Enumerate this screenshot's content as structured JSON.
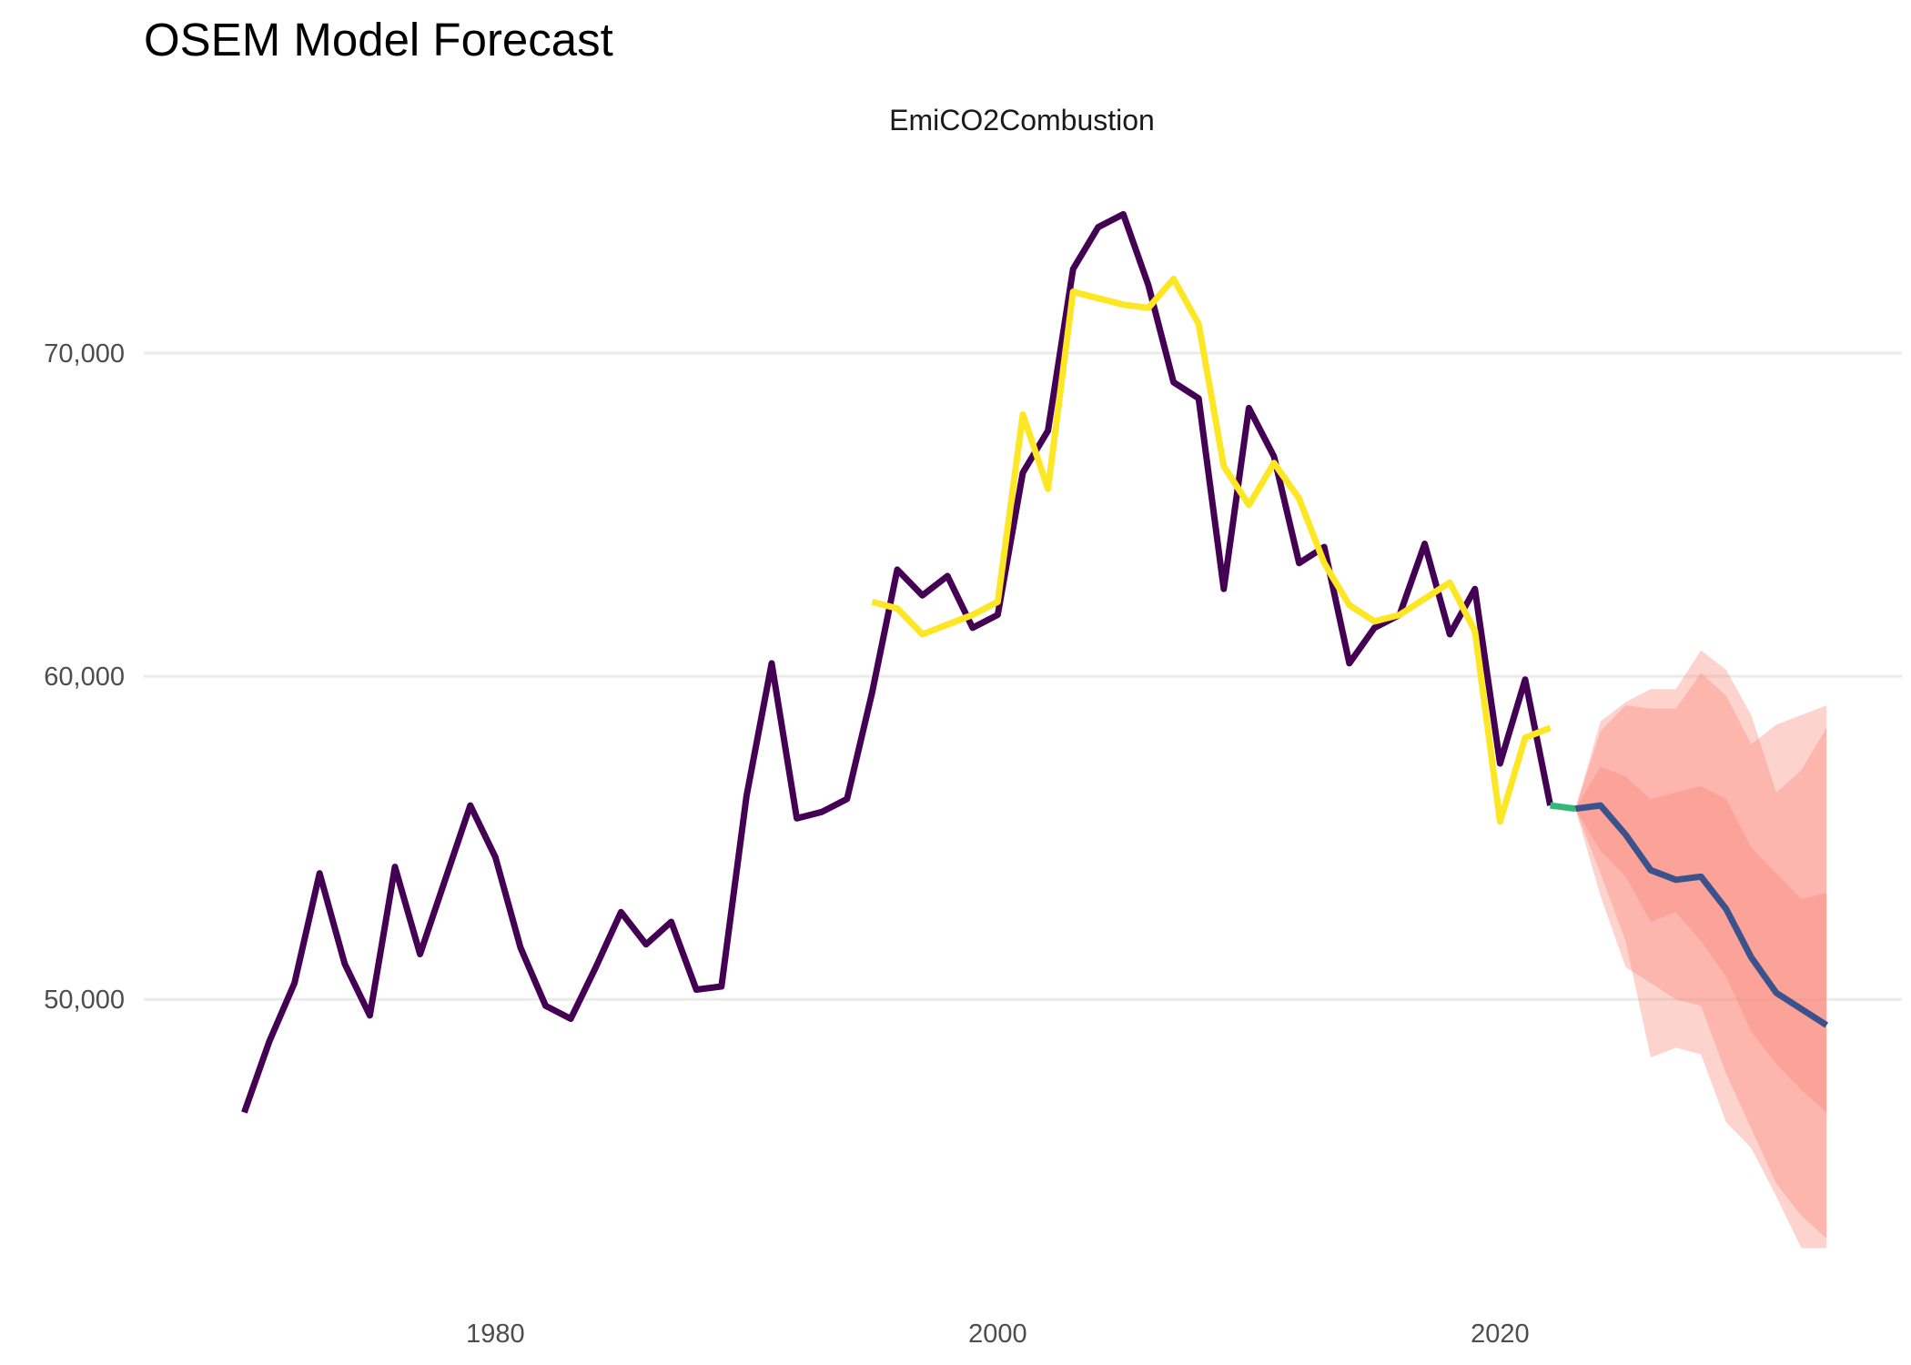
{
  "title": "OSEM Model Forecast",
  "chart_data": {
    "type": "line",
    "title": "OSEM Model Forecast",
    "subtitle": "EmiCO2Combustion",
    "xlabel": "",
    "ylabel": "",
    "xlim": [
      1966,
      2036
    ],
    "ylim": [
      41500,
      76000
    ],
    "x_ticks": [
      1980,
      2000,
      2020
    ],
    "x_tick_labels": [
      "1980",
      "2000",
      "2020"
    ],
    "y_ticks": [
      50000,
      60000,
      70000
    ],
    "y_tick_labels": [
      "50,000",
      "60,000",
      "70,000"
    ],
    "grid": "horizontal major",
    "legend": "none",
    "series": [
      {
        "color": "#440154",
        "x": [
          1970,
          1971,
          1972,
          1973,
          1974,
          1975,
          1976,
          1977,
          1978,
          1979,
          1980,
          1981,
          1982,
          1983,
          1984,
          1985,
          1986,
          1987,
          1988,
          1989,
          1990,
          1991,
          1992,
          1993,
          1994,
          1995,
          1996,
          1997,
          1998,
          1999,
          2000,
          2001,
          2002,
          2003,
          2004,
          2005,
          2006,
          2007,
          2008,
          2009,
          2010,
          2011,
          2012,
          2013,
          2014,
          2015,
          2016,
          2017,
          2018,
          2019,
          2020,
          2021,
          2022
        ],
        "y": [
          46500,
          48700,
          50500,
          53900,
          51100,
          49500,
          54100,
          51400,
          53700,
          56000,
          54400,
          51600,
          49800,
          49400,
          51000,
          52700,
          51700,
          52400,
          50300,
          50400,
          56300,
          60400,
          55600,
          55800,
          56200,
          59500,
          63300,
          62500,
          63100,
          61500,
          61900,
          66300,
          67600,
          72600,
          73900,
          74300,
          72100,
          69100,
          68600,
          62700,
          68300,
          66800,
          63500,
          64000,
          60400,
          61500,
          61900,
          64100,
          61300,
          62700,
          57300,
          59900,
          56000
        ]
      },
      {
        "color": "#FDE725",
        "x": [
          1995,
          1996,
          1997,
          1998,
          1999,
          2000,
          2001,
          2002,
          2003,
          2004,
          2005,
          2006,
          2007,
          2008,
          2009,
          2010,
          2011,
          2012,
          2013,
          2014,
          2015,
          2016,
          2017,
          2018,
          2019,
          2020,
          2021,
          2022
        ],
        "y": [
          62300,
          62100,
          61300,
          61600,
          61900,
          62300,
          68100,
          65800,
          71900,
          71700,
          71500,
          71400,
          72300,
          70900,
          66500,
          65300,
          66600,
          65500,
          63500,
          62200,
          61700,
          61900,
          62400,
          62900,
          61400,
          55500,
          58100,
          58400
        ]
      },
      {
        "color": "#35B779",
        "x": [
          2022,
          2023
        ],
        "y": [
          56000,
          55900
        ]
      },
      {
        "color": "#3B528B",
        "x": [
          2023,
          2024,
          2025,
          2026,
          2027,
          2028,
          2029,
          2030,
          2031,
          2032,
          2033
        ],
        "y": [
          55900,
          56000,
          55100,
          54000,
          53700,
          53800,
          52800,
          51300,
          50200,
          49700,
          49200
        ]
      }
    ],
    "forecast_intervals": [
      {
        "color": "#FA8072",
        "x": [
          2023,
          2024,
          2025,
          2026,
          2027,
          2028,
          2029,
          2030,
          2031,
          2032,
          2033
        ],
        "lower": [
          55900,
          53200,
          51000,
          50500,
          50000,
          49800,
          47700,
          46000,
          44300,
          43300,
          42600
        ],
        "upper": [
          55900,
          58600,
          59200,
          59600,
          59600,
          60800,
          60200,
          58800,
          56400,
          57100,
          58400
        ]
      },
      {
        "color": "#FA8072",
        "x": [
          2023,
          2024,
          2025,
          2026,
          2027,
          2028,
          2029,
          2030,
          2031,
          2032,
          2033
        ],
        "lower": [
          55900,
          53900,
          51800,
          48200,
          48500,
          48300,
          46200,
          45400,
          43900,
          42300,
          42300
        ],
        "upper": [
          55900,
          58300,
          59100,
          59000,
          59000,
          60100,
          59400,
          57900,
          58500,
          58800,
          59100
        ]
      },
      {
        "color": "#FA8072",
        "x": [
          2023,
          2024,
          2025,
          2026,
          2027,
          2028,
          2029,
          2030,
          2031,
          2032,
          2033
        ],
        "lower": [
          55900,
          54600,
          53800,
          52400,
          52700,
          51800,
          50700,
          49000,
          48000,
          47200,
          46500
        ],
        "upper": [
          55900,
          57200,
          56900,
          56200,
          56400,
          56600,
          56200,
          54700,
          53900,
          53100,
          53300
        ]
      }
    ]
  }
}
